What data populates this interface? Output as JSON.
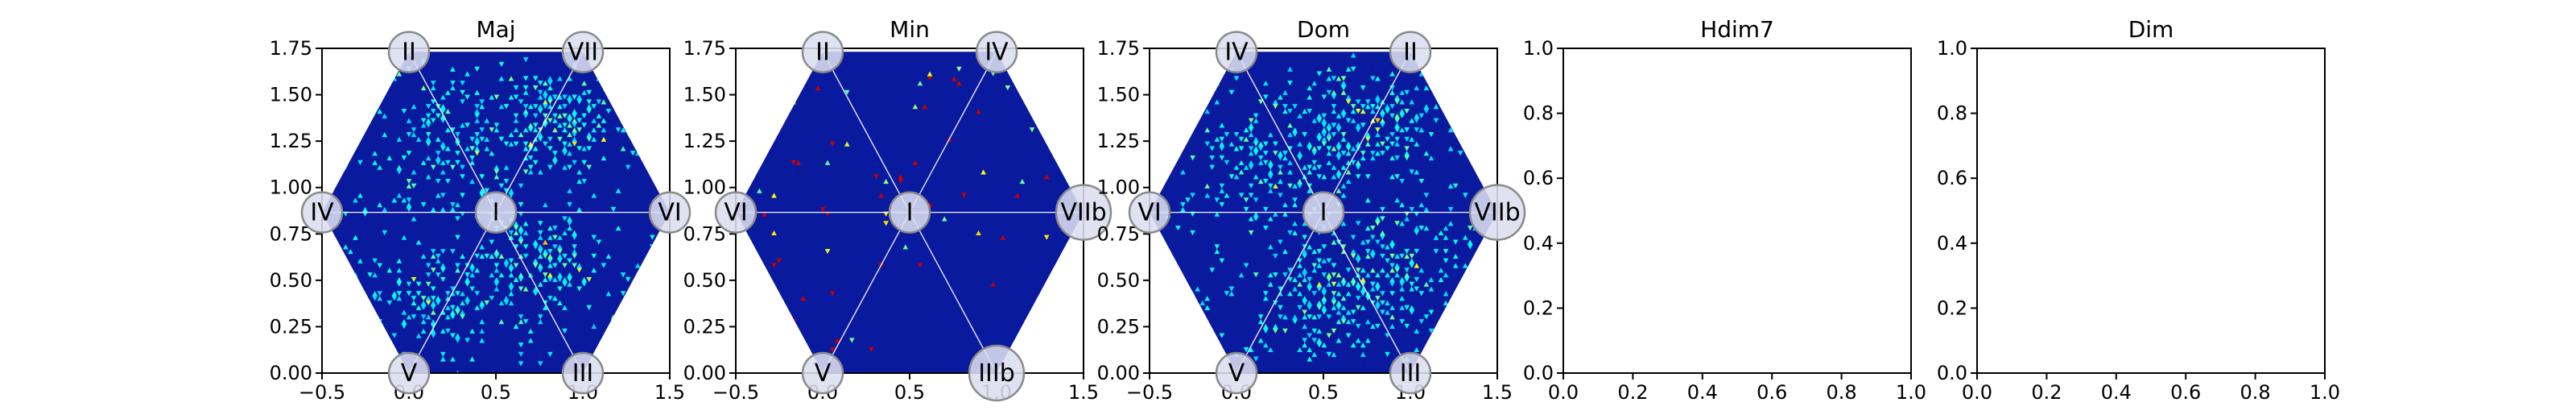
{
  "chart_data": [
    {
      "type": "heatmap",
      "title": "Maj",
      "xlim": [
        -0.5,
        1.5
      ],
      "ylim": [
        0,
        1.75
      ],
      "x_ticks": [
        "−0.5",
        "0.0",
        "0.5",
        "1.0",
        "1.5"
      ],
      "y_ticks": [
        "0.00",
        "0.25",
        "0.50",
        "0.75",
        "1.00",
        "1.25",
        "1.50",
        "1.75"
      ],
      "hexagon": true,
      "nodes": [
        {
          "label": "II",
          "x": 0.0,
          "y": 1.73
        },
        {
          "label": "VII",
          "x": 1.0,
          "y": 1.73
        },
        {
          "label": "IV",
          "x": -0.5,
          "y": 0.866
        },
        {
          "label": "I",
          "x": 0.5,
          "y": 0.866
        },
        {
          "label": "VI",
          "x": 1.5,
          "y": 0.866
        },
        {
          "label": "V",
          "x": 0.0,
          "y": 0.0
        },
        {
          "label": "III",
          "x": 1.0,
          "y": 0.0
        }
      ],
      "hotspots": [
        {
          "x": 0.85,
          "y": 1.35,
          "spread": 0.18,
          "count": 170
        },
        {
          "x": 0.25,
          "y": 1.25,
          "spread": 0.2,
          "count": 110
        },
        {
          "x": 0.75,
          "y": 0.62,
          "spread": 0.18,
          "count": 150
        },
        {
          "x": 0.15,
          "y": 0.42,
          "spread": 0.18,
          "count": 120
        }
      ],
      "scatter_count": 220,
      "seed": 11
    },
    {
      "type": "heatmap",
      "title": "Min",
      "xlim": [
        -0.5,
        1.5
      ],
      "ylim": [
        0,
        1.75
      ],
      "x_ticks": [
        "−0.5",
        "0.0",
        "0.5",
        "1.0",
        "1.5"
      ],
      "y_ticks": [
        "0.00",
        "0.25",
        "0.50",
        "0.75",
        "1.00",
        "1.25",
        "1.50",
        "1.75"
      ],
      "hexagon": true,
      "nodes": [
        {
          "label": "II",
          "x": 0.0,
          "y": 1.73
        },
        {
          "label": "IV",
          "x": 1.0,
          "y": 1.73
        },
        {
          "label": "VI",
          "x": -0.5,
          "y": 0.866
        },
        {
          "label": "I",
          "x": 0.5,
          "y": 0.866
        },
        {
          "label": "VIIb",
          "x": 1.5,
          "y": 0.866
        },
        {
          "label": "V",
          "x": 0.0,
          "y": 0.0
        },
        {
          "label": "IIIb",
          "x": 1.0,
          "y": 0.0
        }
      ],
      "hotspots": [],
      "scatter_count": 70,
      "seed": 23
    },
    {
      "type": "heatmap",
      "title": "Dom",
      "xlim": [
        -0.5,
        1.5
      ],
      "ylim": [
        0,
        1.75
      ],
      "x_ticks": [
        "−0.5",
        "0.0",
        "0.5",
        "1.0",
        "1.5"
      ],
      "y_ticks": [
        "0.00",
        "0.25",
        "0.50",
        "0.75",
        "1.00",
        "1.25",
        "1.50",
        "1.75"
      ],
      "hexagon": true,
      "nodes": [
        {
          "label": "IV",
          "x": 0.0,
          "y": 1.73
        },
        {
          "label": "II",
          "x": 1.0,
          "y": 1.73
        },
        {
          "label": "VI",
          "x": -0.5,
          "y": 0.866
        },
        {
          "label": "I",
          "x": 0.5,
          "y": 0.866
        },
        {
          "label": "VIIb",
          "x": 1.5,
          "y": 0.866
        },
        {
          "label": "V",
          "x": 0.0,
          "y": 0.0
        },
        {
          "label": "III",
          "x": 1.0,
          "y": 0.0
        }
      ],
      "hotspots": [
        {
          "x": 0.72,
          "y": 1.35,
          "spread": 0.18,
          "count": 180
        },
        {
          "x": 0.2,
          "y": 1.15,
          "spread": 0.2,
          "count": 120
        },
        {
          "x": 0.55,
          "y": 0.42,
          "spread": 0.18,
          "count": 170
        },
        {
          "x": 0.95,
          "y": 0.6,
          "spread": 0.16,
          "count": 100
        }
      ],
      "scatter_count": 260,
      "seed": 37
    },
    {
      "type": "scatter",
      "title": "Hdim7",
      "xlim": [
        0,
        1
      ],
      "ylim": [
        0,
        1
      ],
      "x_ticks": [
        "0.0",
        "0.2",
        "0.4",
        "0.6",
        "0.8",
        "1.0"
      ],
      "y_ticks": [
        "0.0",
        "0.2",
        "0.4",
        "0.6",
        "0.8",
        "1.0"
      ],
      "hexagon": false,
      "nodes": []
    },
    {
      "type": "scatter",
      "title": "Dim",
      "xlim": [
        0,
        1
      ],
      "ylim": [
        0,
        1
      ],
      "x_ticks": [
        "0.0",
        "0.2",
        "0.4",
        "0.6",
        "0.8",
        "1.0"
      ],
      "y_ticks": [
        "0.0",
        "0.2",
        "0.4",
        "0.6",
        "0.8",
        "1.0"
      ],
      "hexagon": false,
      "nodes": []
    }
  ],
  "colors": {
    "background": "#0a1a9e",
    "spokes": "#ffffff"
  }
}
